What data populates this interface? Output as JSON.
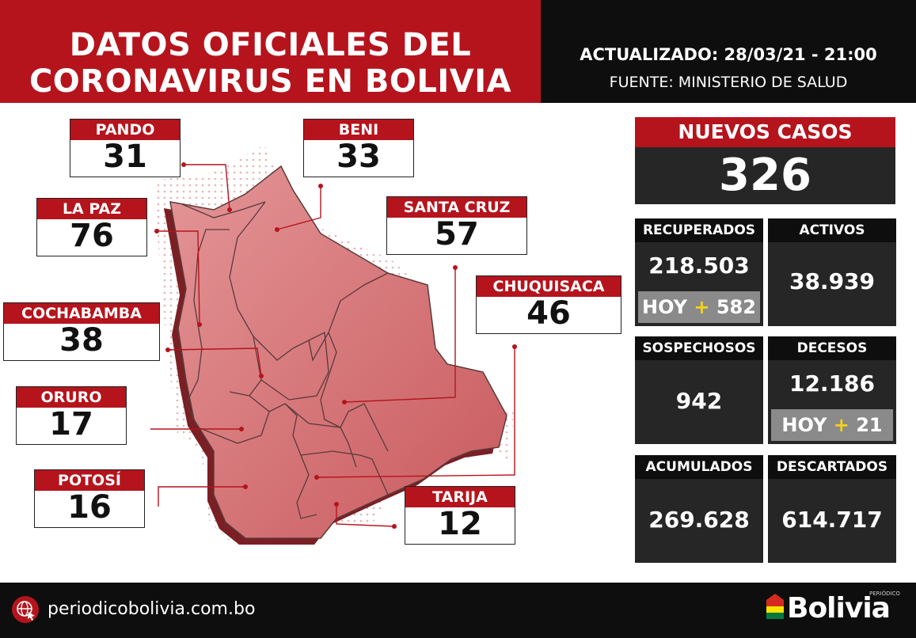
{
  "header": {
    "title_line1": "DATOS OFICIALES DEL",
    "title_line2": "CORONAVIRUS EN BOLIVIA",
    "updated": "ACTUALIZADO: 28/03/21 - 21:00",
    "source": "FUENTE: MINISTERIO DE SALUD"
  },
  "provinces": {
    "pando": {
      "name": "PANDO",
      "value": "31"
    },
    "beni": {
      "name": "BENI",
      "value": "33"
    },
    "la_paz": {
      "name": "LA PAZ",
      "value": "76"
    },
    "santa_cruz": {
      "name": "SANTA CRUZ",
      "value": "57"
    },
    "cochabamba": {
      "name": "COCHABAMBA",
      "value": "38"
    },
    "chuquisaca": {
      "name": "CHUQUISACA",
      "value": "46"
    },
    "oruro": {
      "name": "ORURO",
      "value": "17"
    },
    "potosi": {
      "name": "POTOSÍ",
      "value": "16"
    },
    "tarija": {
      "name": "TARIJA",
      "value": "12"
    }
  },
  "stats": {
    "nuevos_casos": {
      "label": "NUEVOS CASOS",
      "value": "326"
    },
    "recuperados": {
      "label": "RECUPERADOS",
      "value": "218.503",
      "hoy_prefix": "HOY",
      "hoy_plus": "+",
      "hoy_value": "582"
    },
    "activos": {
      "label": "ACTIVOS",
      "value": "38.939"
    },
    "sospechosos": {
      "label": "SOSPECHOSOS",
      "value": "942"
    },
    "decesos": {
      "label": "DECESOS",
      "value": "12.186",
      "hoy_prefix": "HOY",
      "hoy_plus": "+",
      "hoy_value": "21"
    },
    "acumulados": {
      "label": "ACUMULADOS",
      "value": "269.628"
    },
    "descartados": {
      "label": "DESCARTADOS",
      "value": "614.717"
    }
  },
  "footer": {
    "website": "periodicobolivia.com.bo",
    "logo_text": "Bolivia",
    "logo_small": "PERIÓDICO"
  },
  "colors": {
    "brand_red": "#b5141d",
    "map_red": "#d9797c",
    "panel_dark": "#262626",
    "black": "#0e0e0e",
    "hoy_gray": "#8a8a8a",
    "plus_yellow": "#f5d21a"
  },
  "icons": [
    "globe-cursor-icon",
    "bolivia-flag-icon"
  ]
}
